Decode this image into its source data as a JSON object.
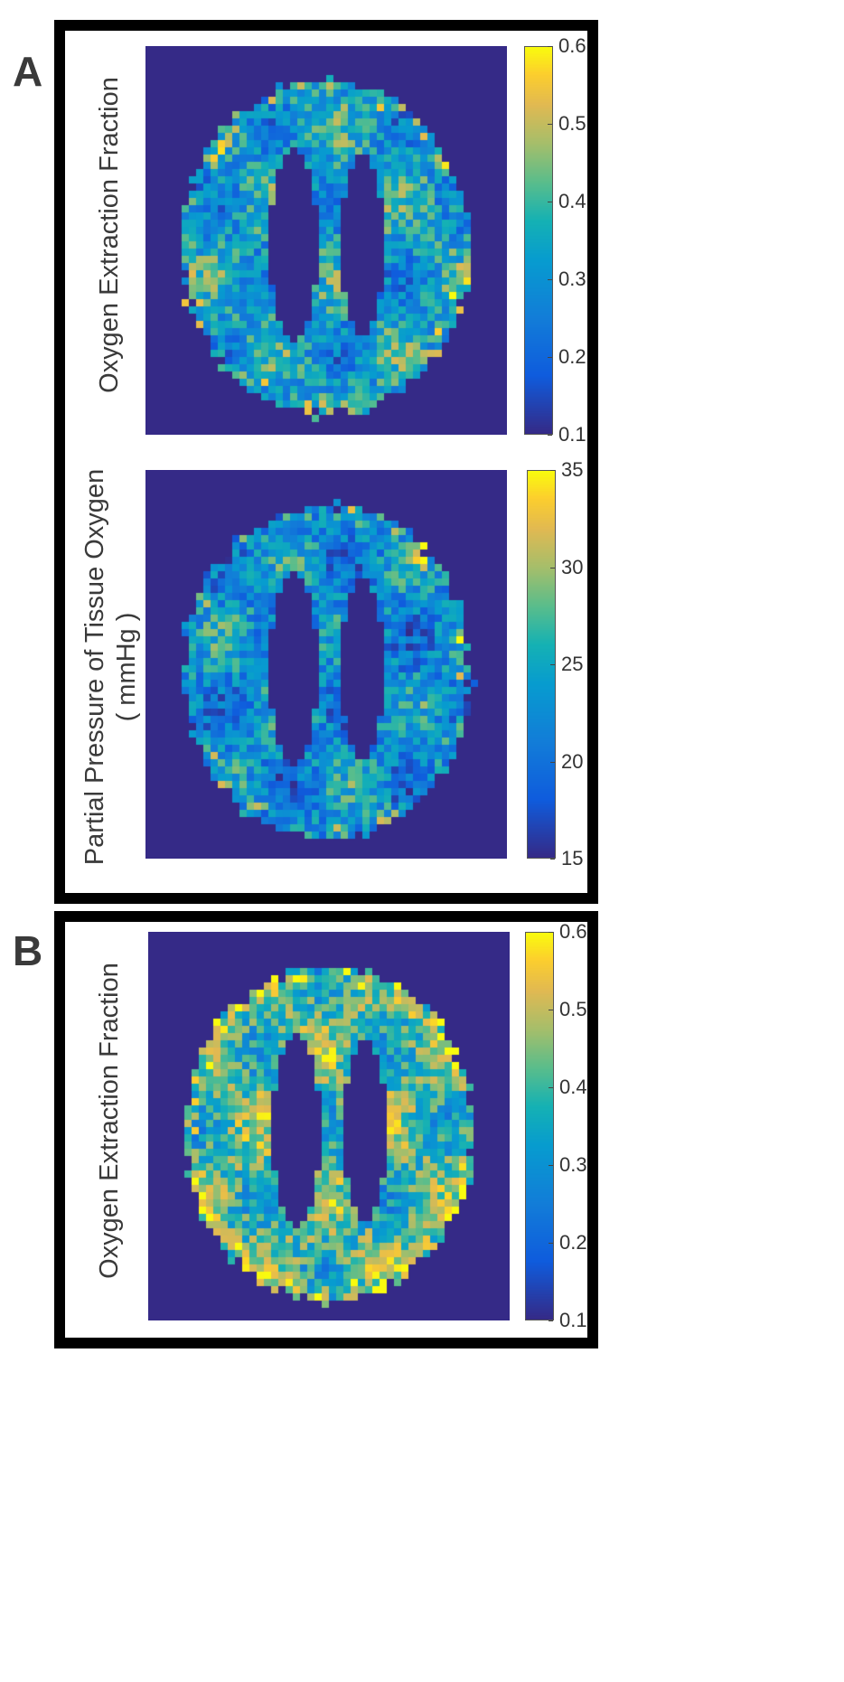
{
  "panels": [
    {
      "letter": "A",
      "plots": [
        {
          "ylabel_line1": "Oxygen Extraction Fraction",
          "ylabel_line2": "",
          "colorbar_ticks": [
            "0.6",
            "0.5",
            "0.4",
            "0.3",
            "0.2",
            "0.1"
          ],
          "colorbar_range": [
            0.1,
            0.6
          ],
          "seed": 11
        },
        {
          "ylabel_line1": "Partial Pressure of Tissue Oxygen",
          "ylabel_line2": "( mmHg )",
          "colorbar_ticks": [
            "35",
            "30",
            "25",
            "20",
            "15"
          ],
          "colorbar_range": [
            15,
            35
          ],
          "seed": 23
        }
      ]
    },
    {
      "letter": "B",
      "plots": [
        {
          "ylabel_line1": "Oxygen Extraction Fraction",
          "ylabel_line2": "",
          "colorbar_ticks": [
            "0.6",
            "0.5",
            "0.4",
            "0.3",
            "0.2",
            "0.1"
          ],
          "colorbar_range": [
            0.1,
            0.6
          ],
          "seed": 37
        }
      ]
    }
  ],
  "colors": {
    "background_field": "#352a87",
    "colormap": "parula"
  }
}
